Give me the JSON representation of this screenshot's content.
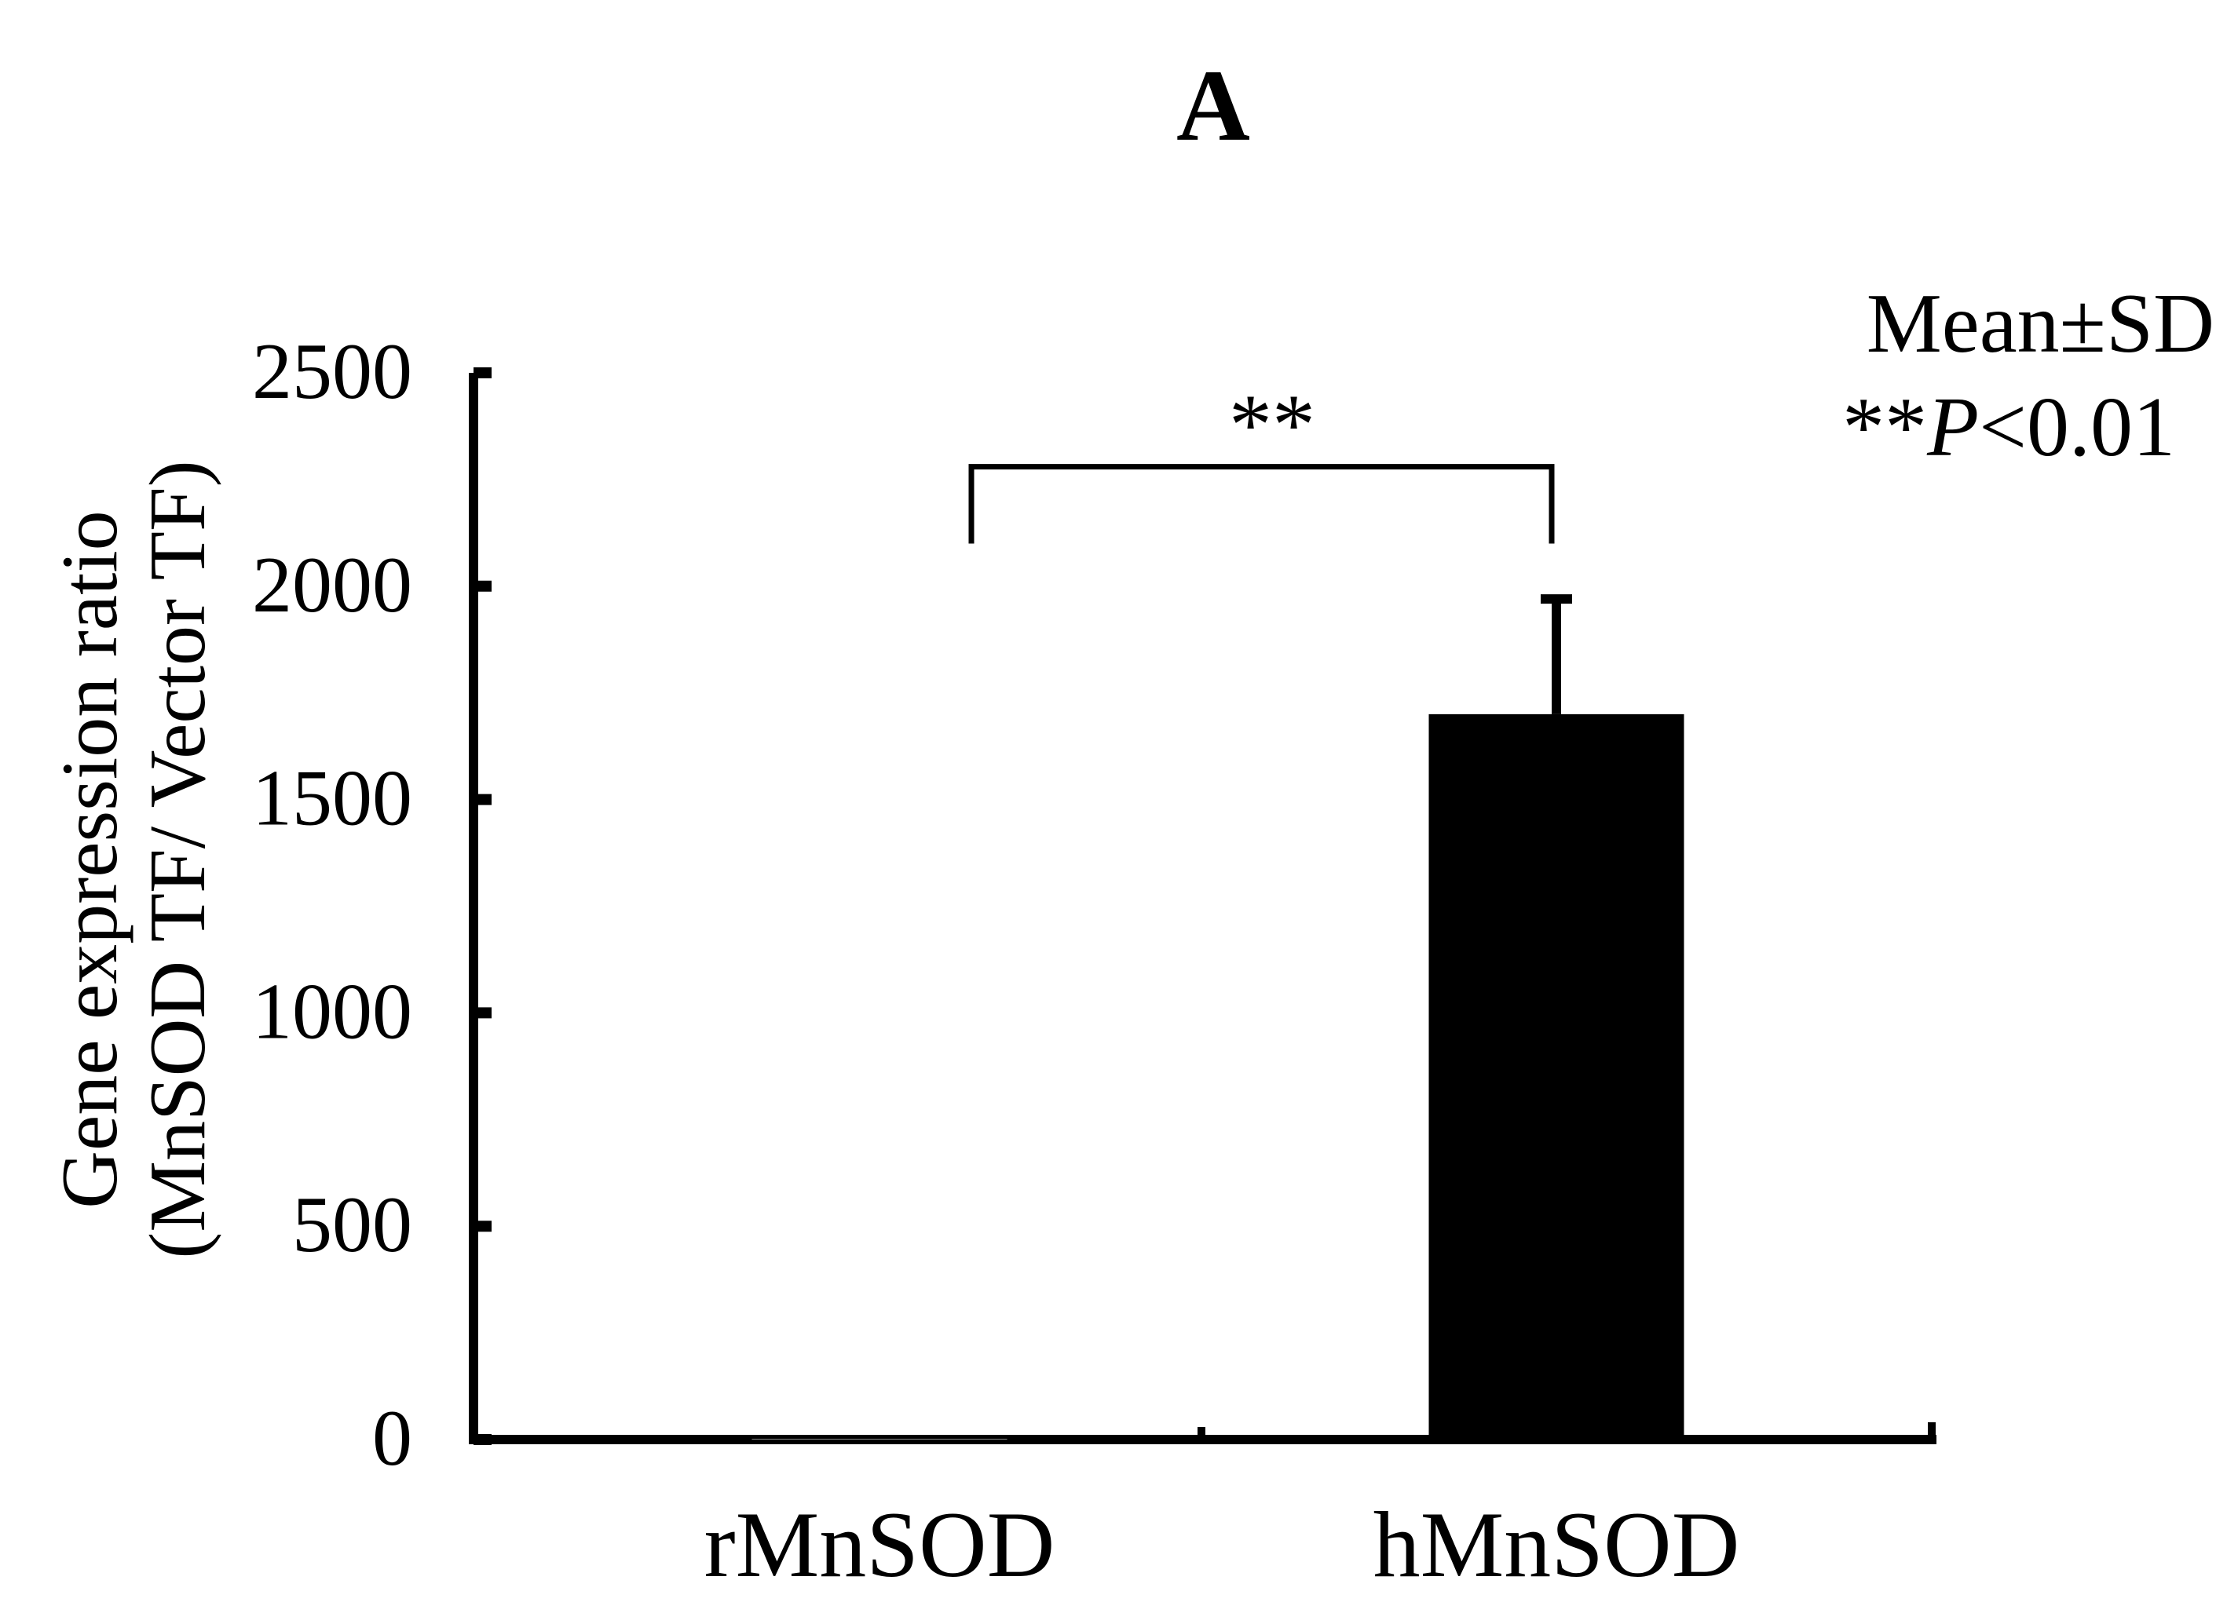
{
  "chart_data": {
    "type": "bar",
    "panel_label": "A",
    "categories": [
      "rMnSOD",
      "hMnSOD"
    ],
    "values": [
      1,
      1700
    ],
    "errors": [
      0,
      270
    ],
    "ylabel_line1": "Gene expression ratio",
    "ylabel_line2": "(MnSOD TF/ Vector TF)",
    "ylim": [
      0,
      2500
    ],
    "yticks": [
      "0",
      "500",
      "1000",
      "1500",
      "2000",
      "2500"
    ],
    "ytick_values": [
      0,
      500,
      1000,
      1500,
      2000,
      2500
    ],
    "significance": {
      "label": "**",
      "from_category": "rMnSOD",
      "to_category": "hMnSOD",
      "bracket_top": 2280,
      "bracket_bottom": 2100
    },
    "legend_line1": "Mean±SD",
    "legend_prefix": "**",
    "legend_italic": "P",
    "legend_suffix": "<0.01",
    "bar_colors": [
      "#ffffff",
      "#000000"
    ]
  }
}
